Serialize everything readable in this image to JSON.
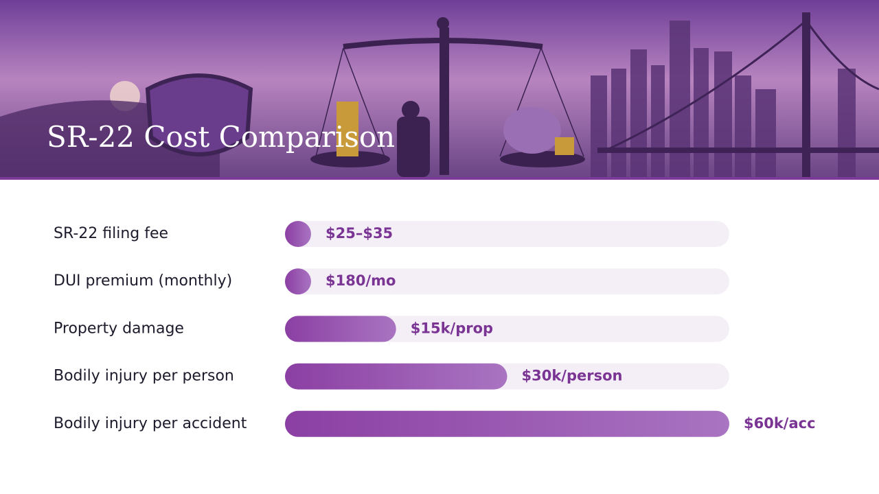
{
  "chart_data": {
    "type": "hbar",
    "title": "SR-22 Cost Comparison",
    "categories": [
      "SR-22 filing fee",
      "DUI premium (monthly)",
      "Property damage",
      "Bodily injury per person",
      "Bodily injury per accident"
    ],
    "values": [
      30,
      180,
      15000,
      30000,
      60000
    ],
    "value_labels": [
      "$25–$35",
      "$180/mo",
      "$15k/prop",
      "$30k/person",
      "$60k/acc"
    ],
    "color": "#8b3fa3",
    "xlim": [
      0,
      60000
    ]
  }
}
